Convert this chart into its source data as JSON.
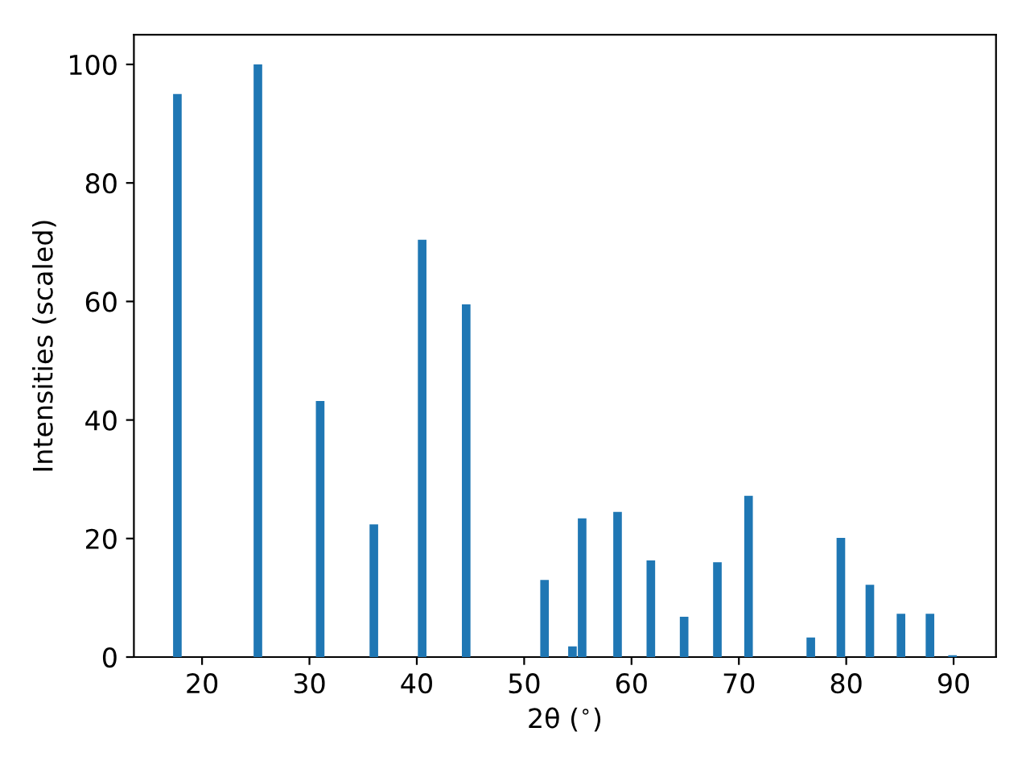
{
  "chart_data": {
    "type": "bar",
    "xlabel": "2θ ($^{∘}$)",
    "ylabel": "Intensities (scaled)",
    "x": [
      17.7,
      25.2,
      31.0,
      36.0,
      40.5,
      44.6,
      51.9,
      54.5,
      55.4,
      58.7,
      61.8,
      64.9,
      68.0,
      70.9,
      76.7,
      79.5,
      82.2,
      85.1,
      87.8,
      89.9
    ],
    "values": [
      95,
      100,
      43.2,
      22.4,
      70.4,
      59.5,
      13,
      1.8,
      23.4,
      24.5,
      16.3,
      6.8,
      16.0,
      27.2,
      3.3,
      20.1,
      12.2,
      7.3,
      7.3,
      0.3
    ],
    "color": "#1f77b4",
    "xlim": [
      13.65,
      93.95
    ],
    "xticks": [
      20,
      30,
      40,
      50,
      60,
      70,
      80,
      90
    ],
    "ylim": [
      0,
      105
    ],
    "yticks": [
      0,
      20,
      40,
      60,
      80,
      100
    ],
    "grid": false,
    "legend": false
  }
}
